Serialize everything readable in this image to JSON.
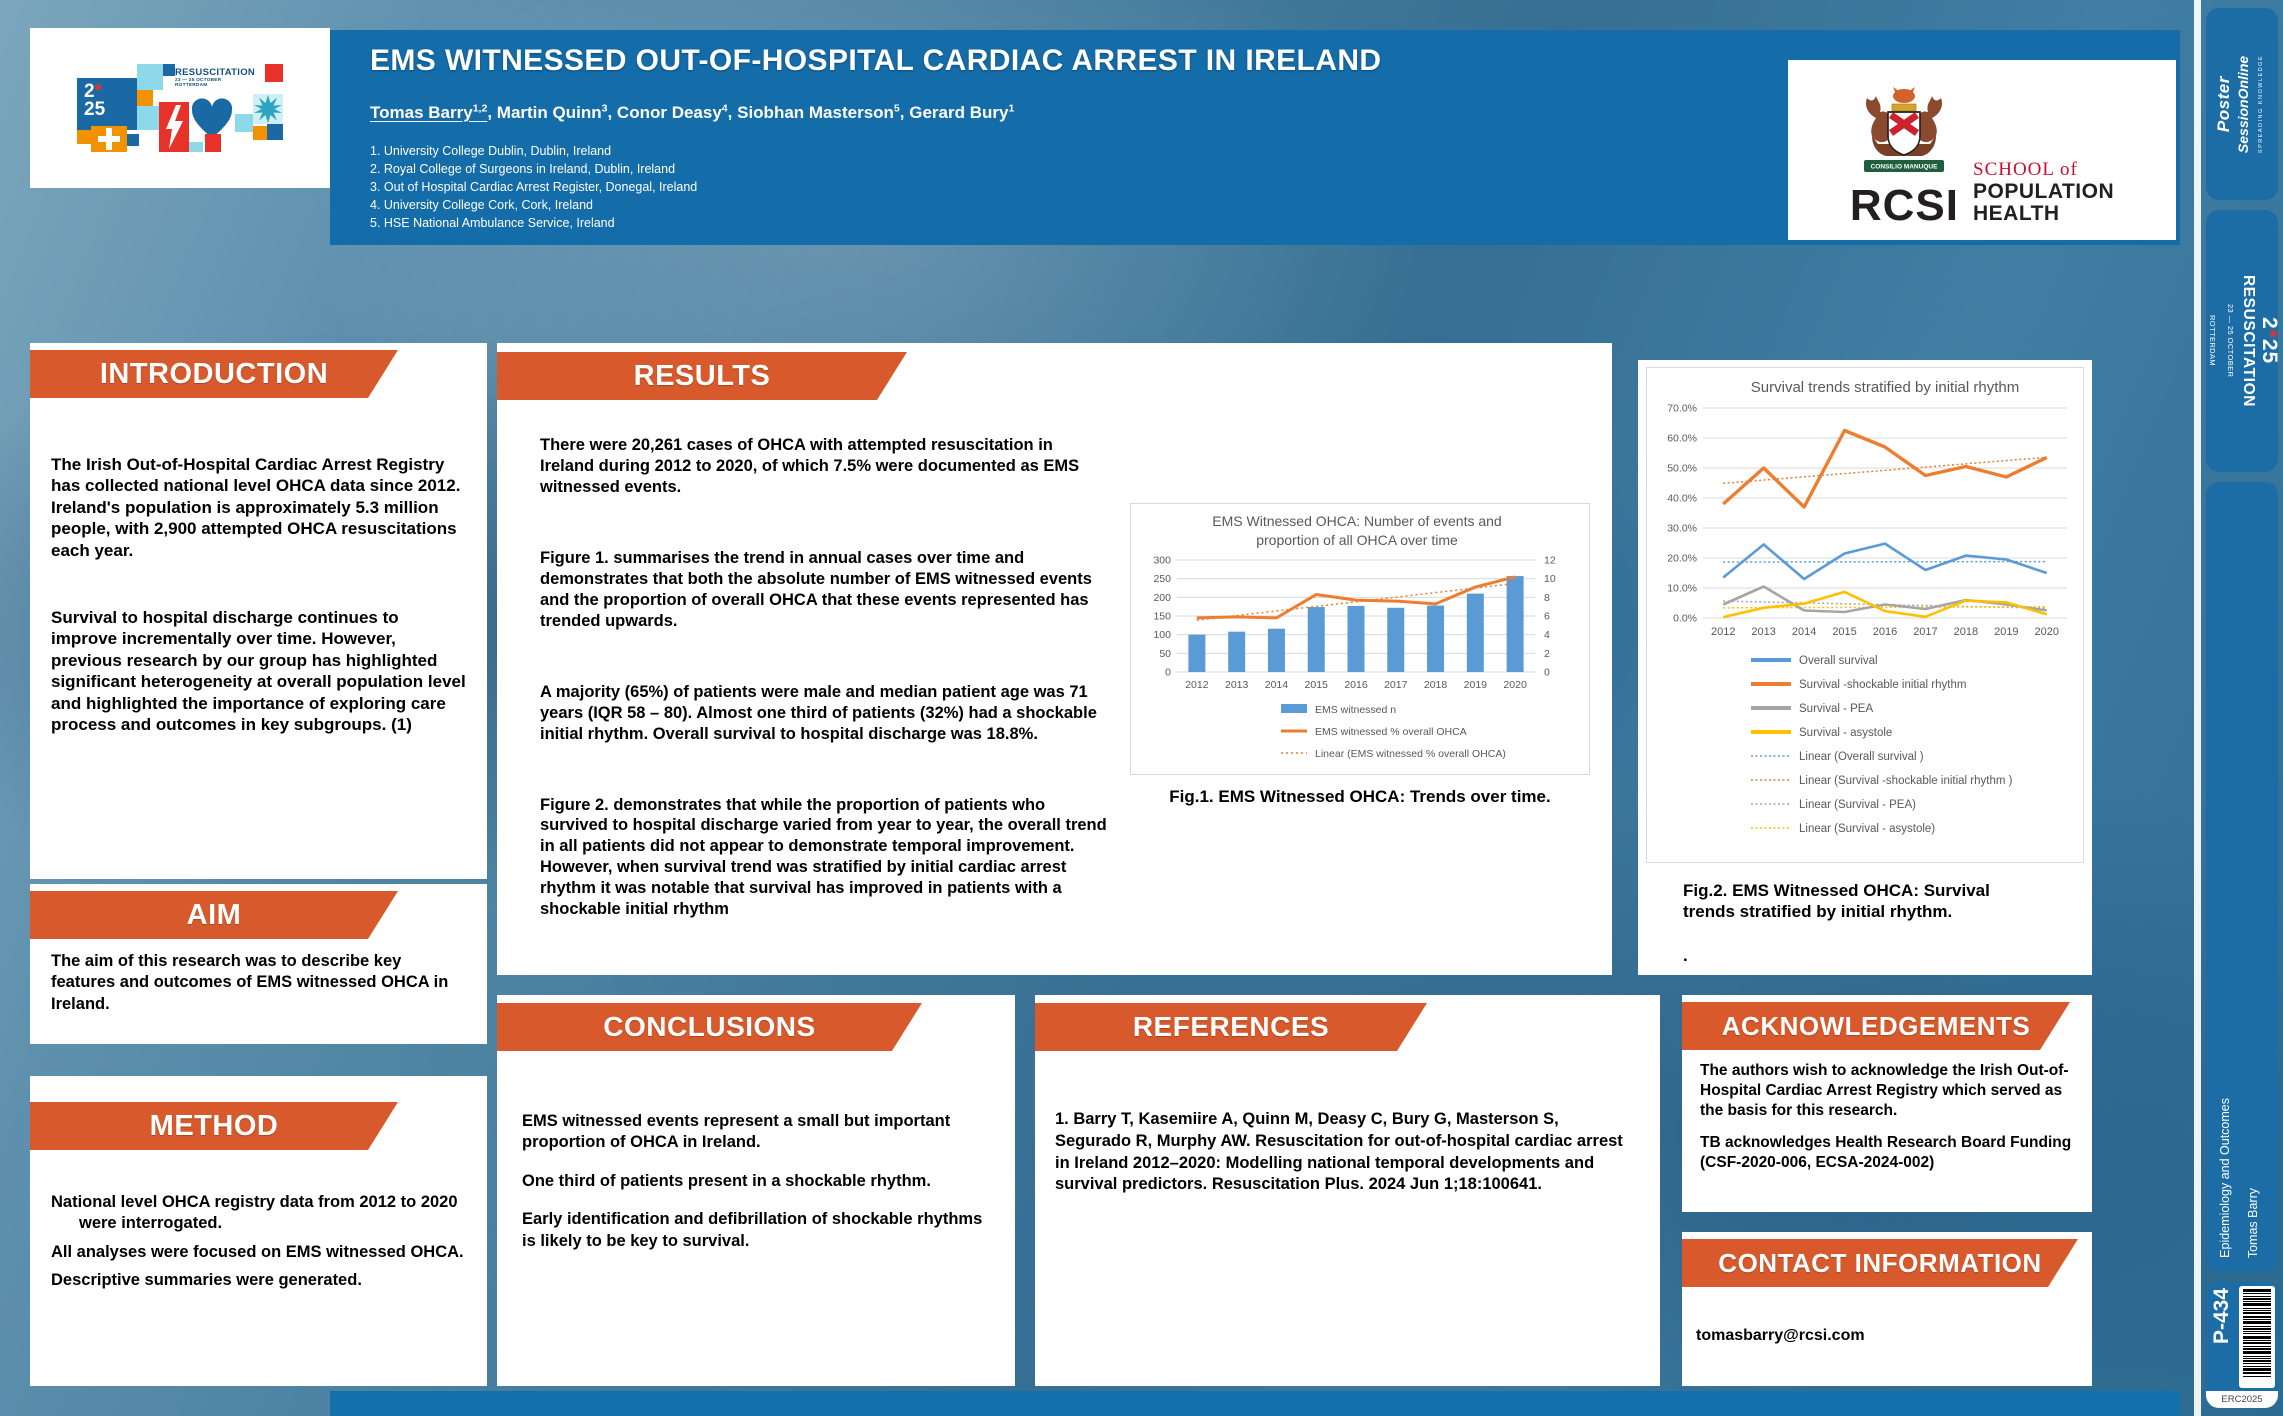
{
  "conference_badge": {
    "year_first": "2",
    "star": "*",
    "year_second": "25",
    "name": "RESUSCITATION",
    "dates": "23 — 25 OCTOBER",
    "city": "ROTTERDAM"
  },
  "header": {
    "title": "EMS WITNESSED OUT-OF-HOSPITAL CARDIAC ARREST IN IRELAND",
    "authors": [
      {
        "name": "Tomas Barry",
        "affil_sup": "1,2",
        "underlined": true
      },
      {
        "name": "Martin Quinn",
        "affil_sup": "3",
        "underlined": false
      },
      {
        "name": "Conor Deasy",
        "affil_sup": "4",
        "underlined": false
      },
      {
        "name": "Siobhan Masterson",
        "affil_sup": "5",
        "underlined": false
      },
      {
        "name": "Gerard Bury",
        "affil_sup": "1",
        "underlined": false
      }
    ],
    "affiliations": [
      "University College Dublin, Dublin, Ireland",
      "Royal College of Surgeons in Ireland, Dublin, Ireland",
      "Out of Hospital Cardiac Arrest Register, Donegal, Ireland",
      "University College Cork, Cork, Ireland",
      "HSE National Ambulance Service, Ireland"
    ],
    "rcsi": {
      "abbr": "RCSI",
      "motto": "CONSILIO MANUQUE",
      "school_line": "SCHOOL of",
      "dept_line1": "POPULATION",
      "dept_line2": "HEALTH"
    }
  },
  "sections": {
    "introduction": {
      "title": "INTRODUCTION",
      "paragraphs": [
        "The Irish Out-of-Hospital Cardiac Arrest Registry has collected national level OHCA data since 2012. Ireland's population is approximately 5.3 million people, with 2,900 attempted OHCA resuscitations each year.",
        "Survival to hospital discharge continues to improve incrementally over time. However, previous research by our group has highlighted significant heterogeneity at overall population level and highlighted the importance of exploring care process and outcomes in key subgroups. (1)"
      ]
    },
    "aim": {
      "title": "AIM",
      "paragraphs": [
        "The aim of this research was to describe key features and outcomes of EMS witnessed OHCA in Ireland."
      ]
    },
    "method": {
      "title": "METHOD",
      "items": [
        "National level OHCA registry data from 2012 to 2020 were interrogated.",
        "All analyses were focused on EMS witnessed OHCA.",
        "Descriptive summaries were generated."
      ]
    },
    "results": {
      "title": "RESULTS",
      "paragraphs": [
        "There were 20,261 cases of OHCA with attempted resuscitation in Ireland during 2012 to 2020, of which 7.5% were documented as EMS witnessed events.",
        "Figure 1. summarises the trend in annual cases over time and demonstrates that both the absolute number of EMS witnessed events and the proportion of overall OHCA that these events represented has trended upwards.",
        "A majority (65%) of patients were male and median patient age was 71 years (IQR 58 – 80). Almost one third of patients (32%) had a shockable initial rhythm. Overall survival to hospital discharge was 18.8%.",
        "Figure 2. demonstrates that while the proportion of patients who survived to hospital discharge varied from year to year, the overall trend in all patients did not appear to demonstrate temporal improvement. However, when survival trend was stratified by initial cardiac arrest rhythm it was notable that survival has improved in patients with a shockable initial rhythm"
      ]
    },
    "conclusions": {
      "title": "CONCLUSIONS",
      "paragraphs": [
        "EMS witnessed events represent a small but important proportion of OHCA in Ireland.",
        "One third of patients present in a shockable rhythm.",
        "Early identification and defibrillation of shockable rhythms is likely to be key to survival."
      ]
    },
    "references": {
      "title": "REFERENCES",
      "items": [
        "1. Barry T, Kasemiire A, Quinn M, Deasy C, Bury G, Masterson S, Segurado R, Murphy AW. Resuscitation for out-of-hospital cardiac arrest in Ireland 2012–2020: Modelling national temporal developments and survival predictors. Resuscitation Plus. 2024 Jun 1;18:100641."
      ]
    },
    "acknowledgements": {
      "title": "ACKNOWLEDGEMENTS",
      "paragraphs": [
        "The authors wish to acknowledge the Irish Out-of-Hospital Cardiac Arrest Registry which served as the basis for this research.",
        "TB acknowledges Health Research Board Funding (CSF-2020-006, ECSA-2024-002)"
      ]
    },
    "contact": {
      "title": "CONTACT INFORMATION",
      "email": "tomasbarry@rcsi.com"
    }
  },
  "figures": {
    "fig1_caption": "Fig.1. EMS Witnessed OHCA: Trends over time.",
    "fig2_caption": "Fig.2. EMS Witnessed OHCA: Survival trends stratified by initial rhythm.",
    "fig2_caption_trailing_dot": "."
  },
  "sidebar": {
    "poster_session_online": {
      "line1": "Poster",
      "line2": "SessionOnline",
      "tagline": "SPREADING KNOWLEDGE"
    },
    "category": "Epidemiology and Outcomes",
    "presenter": "Tomas Barry",
    "poster_number": "P-434",
    "event_code": "ERC2025"
  },
  "colors": {
    "accent_orange": "#D85A2C",
    "panel_blue": "#146CA8",
    "badge_blue": "#1C6DA6",
    "bar_blue": "#5B9BD5",
    "line_orange": "#ED7D31",
    "line_gray": "#A5A5A5",
    "line_yellow": "#FFC000",
    "grid_gray": "#D9D9D9",
    "chart_text_gray": "#595959"
  },
  "chart_data": [
    {
      "id": "fig1",
      "type": "bar",
      "title": "EMS Witnessed OHCA: Number of events and proportion of all OHCA over time",
      "title_lines": [
        "EMS Witnessed OHCA: Number of events and",
        "proportion of all OHCA over time"
      ],
      "categories": [
        "2012",
        "2013",
        "2014",
        "2015",
        "2016",
        "2017",
        "2018",
        "2019",
        "2020"
      ],
      "bar_series": {
        "name": "EMS witnessed n",
        "axis": "left",
        "color": "#5B9BD5",
        "values": [
          100,
          108,
          116,
          174,
          177,
          172,
          178,
          210,
          257
        ]
      },
      "line_series": {
        "name": "EMS witnessed % overall OHCA",
        "axis": "right",
        "color": "#ED7D31",
        "values": [
          5.8,
          5.9,
          5.8,
          8.3,
          7.7,
          7.6,
          7.3,
          9.1,
          10.2
        ]
      },
      "trend_series": {
        "name": "Linear (EMS witnessed % overall OHCA)",
        "of": "line_series",
        "style": "dotted",
        "color": "#ED7D31"
      },
      "left_axis": {
        "min": 0,
        "max": 300,
        "step": 50
      },
      "right_axis": {
        "min": 0,
        "max": 12,
        "step": 2
      },
      "grid": true,
      "legend_position": "bottom"
    },
    {
      "id": "fig2",
      "type": "line",
      "title": "Survival trends stratified by initial rhythm",
      "categories": [
        "2012",
        "2013",
        "2014",
        "2015",
        "2016",
        "2017",
        "2018",
        "2019",
        "2020"
      ],
      "y_axis": {
        "min": 0,
        "max": 70,
        "step": 10,
        "unit": "%"
      },
      "series": [
        {
          "name": "Overall survival",
          "color": "#5B9BD5",
          "values": [
            13.5,
            24.5,
            13.0,
            21.5,
            24.8,
            16.0,
            20.8,
            19.5,
            15.0
          ]
        },
        {
          "name": "Survival -shockable initial rhythm",
          "color": "#ED7D31",
          "values": [
            38.0,
            50.0,
            37.0,
            62.5,
            57.0,
            47.5,
            50.5,
            47.0,
            53.5
          ]
        },
        {
          "name": "Survival - PEA",
          "color": "#A5A5A5",
          "values": [
            4.5,
            10.5,
            2.5,
            2.0,
            4.5,
            3.0,
            6.0,
            4.5,
            2.5
          ]
        },
        {
          "name": "Survival -  asystole",
          "color": "#FFC000",
          "values": [
            0.3,
            3.4,
            4.8,
            8.7,
            2.3,
            0.4,
            5.8,
            5.2,
            1.2
          ]
        }
      ],
      "trend_series": [
        {
          "name": "Linear (Overall survival )",
          "of": 0,
          "style": "dotted",
          "color": "#5B9BD5"
        },
        {
          "name": "Linear (Survival -shockable initial rhythm )",
          "of": 1,
          "style": "dotted",
          "color": "#ED7D31"
        },
        {
          "name": "Linear (Survival - PEA)",
          "of": 2,
          "style": "dotted",
          "color": "#A5A5A5"
        },
        {
          "name": "Linear (Survival -  asystole)",
          "of": 3,
          "style": "dotted",
          "color": "#FFC000"
        }
      ],
      "grid": true,
      "legend_position": "bottom"
    }
  ]
}
